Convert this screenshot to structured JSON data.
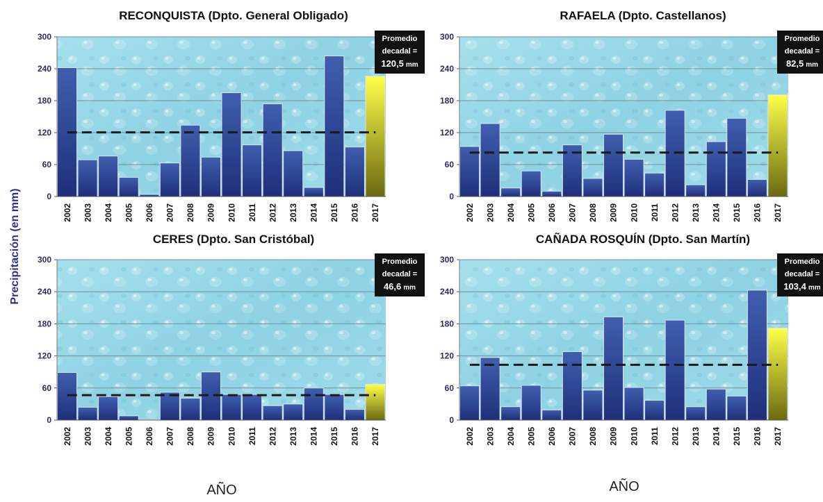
{
  "figure": {
    "y_axis_label": "Precipitación (en mm)",
    "x_axis_label": "AÑO"
  },
  "colors": {
    "bar_blue_top": "#3f5fae",
    "bar_blue_bottom": "#1f2f7a",
    "bar_highlight_top": "#ffff4a",
    "bar_highlight_bottom": "#6b6a10",
    "plot_bg": "#8fd3e3",
    "average_line": "#1a1a1a",
    "average_box": "#111111"
  },
  "chart_data": [
    {
      "type": "bar",
      "title": "RECONQUISTA (Dpto. General Obligado)",
      "categories": [
        "2002",
        "2003",
        "2004",
        "2005",
        "2006",
        "2007",
        "2008",
        "2009",
        "2010",
        "2011",
        "2012",
        "2013",
        "2014",
        "2015",
        "2016",
        "2017"
      ],
      "values": [
        242,
        69,
        76,
        36,
        4,
        63,
        134,
        74,
        195,
        97,
        174,
        86,
        17,
        264,
        93,
        226
      ],
      "highlight_index": 15,
      "average": 120.5,
      "average_label_line1": "Promedio",
      "average_label_line2": "decadal =",
      "average_value": "120,5",
      "average_unit": "mm",
      "yticks": [
        "0",
        "60",
        "120",
        "180",
        "240",
        "300"
      ],
      "ylim": [
        0,
        300
      ],
      "grid": true
    },
    {
      "type": "bar",
      "title": "RAFAELA (Dpto. Castellanos)",
      "categories": [
        "2002",
        "2003",
        "2004",
        "2005",
        "2006",
        "2007",
        "2008",
        "2009",
        "2010",
        "2011",
        "2012",
        "2013",
        "2014",
        "2015",
        "2016",
        "2017"
      ],
      "values": [
        94,
        137,
        16,
        48,
        10,
        97,
        34,
        117,
        70,
        44,
        162,
        22,
        103,
        147,
        32,
        191
      ],
      "highlight_index": 15,
      "average": 82.5,
      "average_label_line1": "Promedio",
      "average_label_line2": "decadal =",
      "average_value": "82,5",
      "average_unit": "mm",
      "yticks": [
        "0",
        "60",
        "120",
        "180",
        "240",
        "300"
      ],
      "ylim": [
        0,
        300
      ],
      "grid": true
    },
    {
      "type": "bar",
      "title": "CERES (Dpto. San Cristóbal)",
      "categories": [
        "2002",
        "2003",
        "2004",
        "2005",
        "2006",
        "2007",
        "2008",
        "2009",
        "2010",
        "2011",
        "2012",
        "2013",
        "2014",
        "2015",
        "2016",
        "2017"
      ],
      "values": [
        89,
        24,
        44,
        8,
        1,
        52,
        41,
        90,
        48,
        48,
        27,
        30,
        60,
        48,
        20,
        67
      ],
      "highlight_index": 15,
      "average": 46.6,
      "average_label_line1": "Promedio",
      "average_label_line2": "decadal =",
      "average_value": "46,6",
      "average_unit": "mm",
      "yticks": [
        "0",
        "60",
        "120",
        "180",
        "240",
        "300"
      ],
      "ylim": [
        0,
        300
      ],
      "grid": true
    },
    {
      "type": "bar",
      "title": "CAÑADA ROSQUÍN (Dpto. San Martín)",
      "categories": [
        "2002",
        "2003",
        "2004",
        "2005",
        "2006",
        "2007",
        "2008",
        "2009",
        "2010",
        "2011",
        "2012",
        "2013",
        "2014",
        "2015",
        "2016",
        "2017"
      ],
      "values": [
        64,
        117,
        25,
        65,
        19,
        128,
        56,
        193,
        61,
        37,
        187,
        25,
        58,
        45,
        243,
        172
      ],
      "highlight_index": 15,
      "average": 103.4,
      "average_label_line1": "Promedio",
      "average_label_line2": "decadal =",
      "average_value": "103,4",
      "average_unit": "mm",
      "yticks": [
        "0",
        "60",
        "120",
        "180",
        "240",
        "300"
      ],
      "ylim": [
        0,
        300
      ],
      "grid": true
    }
  ]
}
